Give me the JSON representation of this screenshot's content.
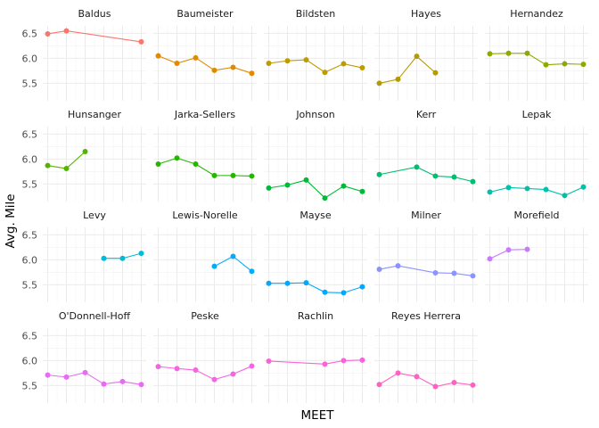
{
  "chart_data": {
    "type": "line",
    "layout": "facet-wrap",
    "ncol": 5,
    "xlabel": "MEET",
    "ylabel": "Avg. Mile",
    "ylim": [
      5.15,
      6.65
    ],
    "yticks": [
      5.5,
      6.0,
      6.5
    ],
    "ytick_labels": [
      "5.5",
      "6.0",
      "6.5"
    ],
    "x_positions": 6,
    "x_tick_labels_shown": false,
    "legend": "none",
    "grid": true,
    "panels": [
      {
        "name": "Baldus",
        "color": "#F8766D",
        "points": [
          [
            1,
            6.49
          ],
          [
            2,
            6.55
          ],
          [
            6,
            6.33
          ]
        ]
      },
      {
        "name": "Baumeister",
        "color": "#E18A00",
        "points": [
          [
            1,
            6.05
          ],
          [
            2,
            5.9
          ],
          [
            3,
            6.01
          ],
          [
            4,
            5.76
          ],
          [
            5,
            5.82
          ],
          [
            6,
            5.7
          ]
        ]
      },
      {
        "name": "Bildsten",
        "color": "#BE9C00",
        "points": [
          [
            1,
            5.9
          ],
          [
            2,
            5.95
          ],
          [
            3,
            5.97
          ],
          [
            4,
            5.72
          ],
          [
            5,
            5.89
          ],
          [
            6,
            5.81
          ]
        ]
      },
      {
        "name": "Hayes",
        "color": "#B59A00",
        "points": [
          [
            1,
            5.5
          ],
          [
            2,
            5.58
          ],
          [
            3,
            6.04
          ],
          [
            4,
            5.71
          ]
        ]
      },
      {
        "name": "Hernandez",
        "color": "#8CAB00",
        "points": [
          [
            1,
            6.09
          ],
          [
            2,
            6.1
          ],
          [
            3,
            6.1
          ],
          [
            4,
            5.87
          ],
          [
            5,
            5.89
          ],
          [
            6,
            5.88
          ]
        ]
      },
      {
        "name": "Hunsanger",
        "color": "#53B400",
        "points": [
          [
            1,
            5.87
          ],
          [
            2,
            5.81
          ],
          [
            3,
            6.15
          ]
        ]
      },
      {
        "name": "Jarka-Sellers",
        "color": "#24B700",
        "points": [
          [
            1,
            5.9
          ],
          [
            2,
            6.02
          ],
          [
            3,
            5.9
          ],
          [
            4,
            5.67
          ],
          [
            5,
            5.67
          ],
          [
            6,
            5.66
          ]
        ]
      },
      {
        "name": "Johnson",
        "color": "#00BA38",
        "points": [
          [
            1,
            5.42
          ],
          [
            2,
            5.48
          ],
          [
            3,
            5.58
          ],
          [
            4,
            5.22
          ],
          [
            5,
            5.46
          ],
          [
            6,
            5.35
          ]
        ]
      },
      {
        "name": "Kerr",
        "color": "#00BE70",
        "points": [
          [
            1,
            5.69
          ],
          [
            3,
            5.84
          ],
          [
            4,
            5.66
          ],
          [
            5,
            5.64
          ],
          [
            6,
            5.55
          ]
        ]
      },
      {
        "name": "Lepak",
        "color": "#00C1AB",
        "points": [
          [
            1,
            5.34
          ],
          [
            2,
            5.43
          ],
          [
            3,
            5.41
          ],
          [
            4,
            5.39
          ],
          [
            5,
            5.27
          ],
          [
            6,
            5.44
          ]
        ]
      },
      {
        "name": "Levy",
        "color": "#00BBDA",
        "points": [
          [
            4,
            6.03
          ],
          [
            5,
            6.03
          ],
          [
            6,
            6.13
          ]
        ]
      },
      {
        "name": "Lewis-Norelle",
        "color": "#00ACFC",
        "points": [
          [
            4,
            5.87
          ],
          [
            5,
            6.07
          ],
          [
            6,
            5.77
          ]
        ]
      },
      {
        "name": "Mayse",
        "color": "#00A9FF",
        "points": [
          [
            1,
            5.53
          ],
          [
            2,
            5.53
          ],
          [
            3,
            5.54
          ],
          [
            4,
            5.35
          ],
          [
            5,
            5.34
          ],
          [
            6,
            5.46
          ]
        ]
      },
      {
        "name": "Milner",
        "color": "#8B93FF",
        "points": [
          [
            1,
            5.81
          ],
          [
            2,
            5.88
          ],
          [
            4,
            5.74
          ],
          [
            5,
            5.73
          ],
          [
            6,
            5.68
          ]
        ]
      },
      {
        "name": "Morefield",
        "color": "#C77CFF",
        "points": [
          [
            1,
            6.02
          ],
          [
            2,
            6.2
          ],
          [
            3,
            6.21
          ]
        ]
      },
      {
        "name": "O'Donnell-Hoff",
        "color": "#E76BF3",
        "points": [
          [
            1,
            5.71
          ],
          [
            2,
            5.67
          ],
          [
            3,
            5.76
          ],
          [
            4,
            5.53
          ],
          [
            5,
            5.58
          ],
          [
            6,
            5.52
          ]
        ]
      },
      {
        "name": "Peske",
        "color": "#F564E3",
        "points": [
          [
            1,
            5.88
          ],
          [
            2,
            5.84
          ],
          [
            3,
            5.81
          ],
          [
            4,
            5.62
          ],
          [
            5,
            5.73
          ],
          [
            6,
            5.89
          ]
        ]
      },
      {
        "name": "Rachlin",
        "color": "#FA62DB",
        "points": [
          [
            1,
            5.99
          ],
          [
            4,
            5.93
          ],
          [
            5,
            6.0
          ],
          [
            6,
            6.01
          ]
        ]
      },
      {
        "name": "Reyes Herrera",
        "color": "#FF61C3",
        "points": [
          [
            1,
            5.52
          ],
          [
            2,
            5.75
          ],
          [
            3,
            5.68
          ],
          [
            4,
            5.48
          ],
          [
            5,
            5.56
          ],
          [
            6,
            5.51
          ]
        ]
      }
    ]
  }
}
